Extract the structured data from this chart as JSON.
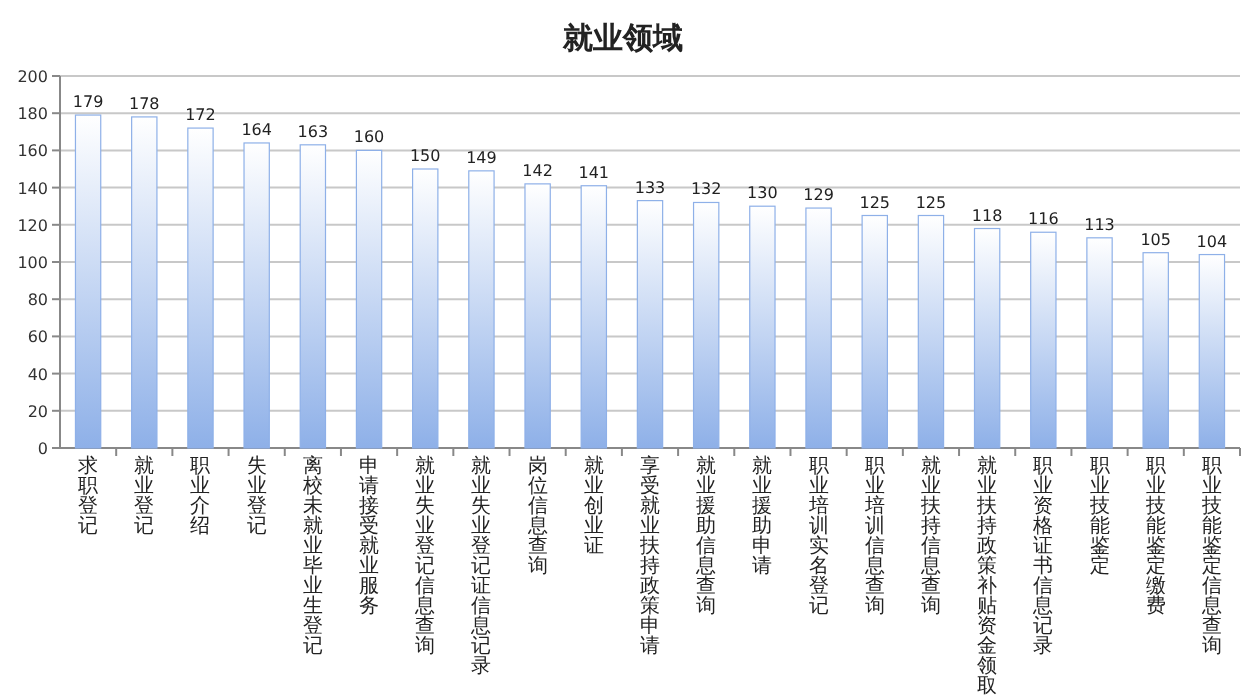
{
  "chart_data": {
    "type": "bar",
    "title": "就业领域",
    "categories": [
      "求职登记",
      "就业登记",
      "职业介绍",
      "失业登记",
      "离校未就业毕业生登记",
      "申请接受就业服务",
      "就业失业登记信息查询",
      "就业失业登记证信息记录",
      "岗位信息查询",
      "就业创业证",
      "享受就业扶持政策申请",
      "就业援助信息查询",
      "就业援助申请",
      "职业培训实名登记",
      "职业培训信息查询",
      "就业扶持信息查询",
      "就业扶持政策补贴资金领取",
      "职业资格证书信息记录",
      "职业技能鉴定",
      "职业技能鉴定缴费",
      "职业技能鉴定信息查询"
    ],
    "values": [
      179,
      178,
      172,
      164,
      163,
      160,
      150,
      149,
      142,
      141,
      133,
      132,
      130,
      129,
      125,
      125,
      118,
      116,
      113,
      105,
      104
    ],
    "color": "#8eb0e8",
    "ylim": [
      0,
      200
    ],
    "yticks": [
      0,
      20,
      40,
      60,
      80,
      100,
      120,
      140,
      160,
      180,
      200
    ],
    "grid": "y",
    "data_labels": true
  }
}
